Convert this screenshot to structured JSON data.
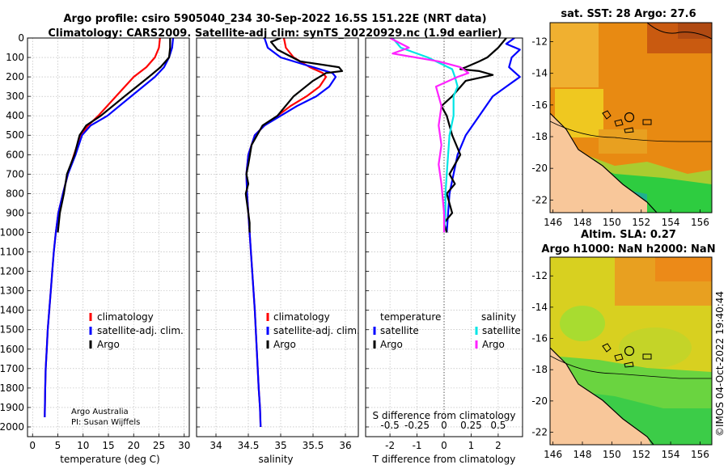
{
  "title": {
    "line1": "Argo profile: csiro 5905040_234 30-Sep-2022 16.5S 151.22E (NRT data)",
    "line2": "Climatology: CARS2009. Satellite-adj clim: synTS_20220929.nc (1.9d earlier)"
  },
  "credit": {
    "line1": "Argo Australia",
    "line2": "PI: Susan Wijffels"
  },
  "timestamp": "©IMOS 04-Oct-2022 19:40:44",
  "colors": {
    "climatology": "#ff0000",
    "satellite": "#0000ff",
    "argo": "#000000",
    "sal_satellite": "#00e5e5",
    "sal_argo": "#ff22ff",
    "grid": "#b0b0b0"
  },
  "chart_data": [
    {
      "type": "line",
      "name": "temperature-profile",
      "xlabel": "temperature (deg C)",
      "xlim": [
        -1,
        31
      ],
      "xticks": [
        "0",
        "5",
        "10",
        "15",
        "20",
        "25",
        "30"
      ],
      "xtick_values": [
        0,
        5,
        10,
        15,
        20,
        25,
        30
      ],
      "ylim": [
        0,
        2050
      ],
      "yticks": [
        "0",
        "100",
        "200",
        "300",
        "400",
        "500",
        "600",
        "700",
        "800",
        "900",
        "1000",
        "1100",
        "1200",
        "1300",
        "1400",
        "1500",
        "1600",
        "1700",
        "1800",
        "1900",
        "2000"
      ],
      "ytick_values": [
        0,
        100,
        200,
        300,
        400,
        500,
        600,
        700,
        800,
        900,
        1000,
        1100,
        1200,
        1300,
        1400,
        1500,
        1600,
        1700,
        1800,
        1900,
        2000
      ],
      "legend": [
        "climatology",
        "satellite-adj. clim.",
        "Argo"
      ],
      "series": [
        {
          "name": "climatology",
          "color": "#ff0000",
          "x": [
            25.2,
            25,
            24.2,
            22.5,
            20,
            16.5,
            13,
            11,
            9.5,
            8.2,
            7,
            6,
            5.1,
            4.6,
            4.2,
            3.9,
            3.6,
            3.3,
            3.0,
            2.8,
            2.6,
            2.5,
            2.4
          ],
          "y": [
            0,
            50,
            100,
            150,
            200,
            300,
            400,
            450,
            500,
            600,
            700,
            800,
            900,
            1000,
            1100,
            1200,
            1300,
            1400,
            1500,
            1600,
            1700,
            1800,
            1950
          ]
        },
        {
          "name": "satellite-adj. clim.",
          "color": "#0000ff",
          "x": [
            27.8,
            27.6,
            27,
            26,
            24.2,
            19.5,
            14.8,
            11.5,
            9.8,
            8.5,
            7,
            6,
            5.1,
            4.6,
            4.2,
            3.9,
            3.6,
            3.3,
            3.0,
            2.8,
            2.6,
            2.5,
            2.4
          ],
          "y": [
            0,
            50,
            100,
            150,
            200,
            300,
            400,
            450,
            500,
            600,
            700,
            800,
            900,
            1000,
            1100,
            1200,
            1300,
            1400,
            1500,
            1600,
            1700,
            1800,
            1950
          ]
        },
        {
          "name": "Argo",
          "color": "#000000",
          "x": [
            27.2,
            27.2,
            27,
            25.3,
            23,
            18.2,
            13.5,
            10.6,
            9.3,
            8.3,
            6.8,
            6.2,
            5.4,
            5.0
          ],
          "y": [
            0,
            50,
            100,
            150,
            200,
            300,
            400,
            450,
            500,
            600,
            700,
            800,
            900,
            1000
          ]
        }
      ]
    },
    {
      "type": "line",
      "name": "salinity-profile",
      "xlabel": "salinity",
      "xlim": [
        33.7,
        36.2
      ],
      "xticks": [
        "34",
        "34.5",
        "35",
        "35.5",
        "36"
      ],
      "xtick_values": [
        34,
        34.5,
        35,
        35.5,
        36
      ],
      "ylim": [
        0,
        2050
      ],
      "legend": [
        "climatology",
        "satellite-adj. clim.",
        "Argo"
      ],
      "series": [
        {
          "name": "climatology",
          "color": "#ff0000",
          "x": [
            35.05,
            35.08,
            35.2,
            35.45,
            35.65,
            35.7,
            35.6,
            35.4,
            35.15,
            34.95,
            34.75,
            34.6,
            34.5,
            34.47,
            34.48,
            34.52,
            34.56,
            34.6,
            34.63,
            34.66,
            34.68,
            34.69
          ],
          "y": [
            0,
            50,
            100,
            150,
            180,
            200,
            250,
            300,
            350,
            400,
            450,
            500,
            600,
            700,
            800,
            1000,
            1200,
            1400,
            1600,
            1800,
            1900,
            2000
          ]
        },
        {
          "name": "satellite-adj. clim.",
          "color": "#0000ff",
          "x": [
            34.75,
            34.8,
            35.0,
            35.5,
            35.8,
            35.85,
            35.75,
            35.55,
            35.25,
            35.0,
            34.75,
            34.6,
            34.5,
            34.47,
            34.48,
            34.52,
            34.56,
            34.6,
            34.63,
            34.66,
            34.68,
            34.69
          ],
          "y": [
            0,
            50,
            100,
            150,
            180,
            200,
            250,
            300,
            350,
            400,
            450,
            500,
            600,
            700,
            800,
            1000,
            1200,
            1400,
            1600,
            1800,
            1900,
            2000
          ]
        },
        {
          "name": "Argo",
          "color": "#000000",
          "x": [
            35.0,
            34.85,
            34.95,
            35.3,
            35.9,
            35.95,
            35.7,
            35.5,
            35.2,
            34.95,
            34.72,
            34.55,
            34.5,
            34.47,
            34.5,
            34.46,
            34.48,
            34.5,
            34.52,
            34.52
          ],
          "y": [
            0,
            20,
            60,
            120,
            150,
            170,
            180,
            220,
            300,
            400,
            450,
            550,
            650,
            700,
            750,
            800,
            850,
            900,
            950,
            1000
          ]
        }
      ]
    },
    {
      "type": "line",
      "name": "difference-profile",
      "xlabel": "T difference from climatology",
      "xlabel2": "S difference from climatology",
      "xlim": [
        -2.9,
        2.9
      ],
      "xticks": [
        "-2",
        "-1",
        "0",
        "1",
        "2"
      ],
      "xtick_values": [
        -2,
        -1,
        0,
        1,
        2
      ],
      "xticks2": [
        "-0.5",
        "-0.25",
        "0",
        "0.25",
        "0.5"
      ],
      "xtick2_values": [
        -0.5,
        -0.25,
        0,
        0.25,
        0.5
      ],
      "legend_headers": [
        "temperature",
        "salinity"
      ],
      "legend_t": [
        "satellite",
        "Argo"
      ],
      "legend_s": [
        "satellite",
        "Argo"
      ],
      "series": [
        {
          "name": "T satellite",
          "color": "#0000ff",
          "x": [
            2.6,
            2.3,
            2.8,
            2.5,
            2.4,
            2.8,
            2.3,
            1.8,
            1.3,
            0.8,
            0.5,
            0.2,
            0.1
          ],
          "y": [
            0,
            30,
            60,
            100,
            150,
            200,
            250,
            300,
            400,
            500,
            600,
            800,
            1000
          ]
        },
        {
          "name": "T Argo",
          "color": "#000000",
          "x": [
            2.3,
            2.0,
            1.6,
            1.3,
            0.8,
            0.6,
            1.3,
            1.8,
            0.8,
            0.3,
            -0.1,
            0.1,
            0.3,
            0.6,
            0.2,
            0.4,
            0.1,
            0.3,
            0.0,
            0.1
          ],
          "y": [
            0,
            50,
            100,
            120,
            150,
            160,
            170,
            190,
            220,
            300,
            350,
            400,
            500,
            600,
            700,
            750,
            800,
            900,
            950,
            1000
          ]
        },
        {
          "name": "S satellite",
          "color": "#00e5e5",
          "x": [
            -1.9,
            -1.6,
            -0.6,
            0.3,
            0.4,
            0.5,
            0.35,
            0.35,
            0.2,
            0.15,
            0.1,
            0.05,
            0.05,
            0.0
          ],
          "y": [
            0,
            50,
            100,
            160,
            200,
            250,
            300,
            400,
            500,
            600,
            700,
            800,
            900,
            1000
          ]
        },
        {
          "name": "S Argo",
          "color": "#ff22ff",
          "x": [
            -2.0,
            -1.3,
            -1.9,
            -0.2,
            0.6,
            0.9,
            0.5,
            -0.3,
            -0.1,
            -0.2,
            -0.1,
            -0.2,
            -0.1,
            0.0,
            0.0
          ],
          "y": [
            0,
            50,
            80,
            120,
            150,
            180,
            200,
            250,
            350,
            450,
            550,
            650,
            750,
            900,
            1000
          ]
        }
      ]
    },
    {
      "type": "heatmap",
      "name": "sst-map",
      "title": "sat. SST: 28 Argo: 27.6",
      "xticks": [
        "146",
        "148",
        "150",
        "152",
        "154",
        "156"
      ],
      "xtick_values": [
        146,
        148,
        150,
        152,
        154,
        156
      ],
      "yticks": [
        "-12",
        "-14",
        "-16",
        "-18",
        "-20",
        "-22"
      ],
      "ytick_values": [
        -12,
        -14,
        -16,
        -18,
        -20,
        -22
      ],
      "xlim": [
        145.8,
        156.8
      ],
      "ylim": [
        -22.8,
        -10.8
      ],
      "argo_position": [
        151.22,
        -16.5
      ]
    },
    {
      "type": "heatmap",
      "name": "sla-map",
      "title1": "Altim. SLA: 0.27",
      "title2": "Argo h1000: NaN h2000: NaN",
      "xticks": [
        "146",
        "148",
        "150",
        "152",
        "154",
        "156"
      ],
      "xtick_values": [
        146,
        148,
        150,
        152,
        154,
        156
      ],
      "yticks": [
        "-12",
        "-14",
        "-16",
        "-18",
        "-20",
        "-22"
      ],
      "ytick_values": [
        -12,
        -14,
        -16,
        -18,
        -20,
        -22
      ],
      "xlim": [
        145.8,
        156.8
      ],
      "ylim": [
        -22.8,
        -10.8
      ],
      "argo_position": [
        151.22,
        -16.5
      ]
    }
  ]
}
